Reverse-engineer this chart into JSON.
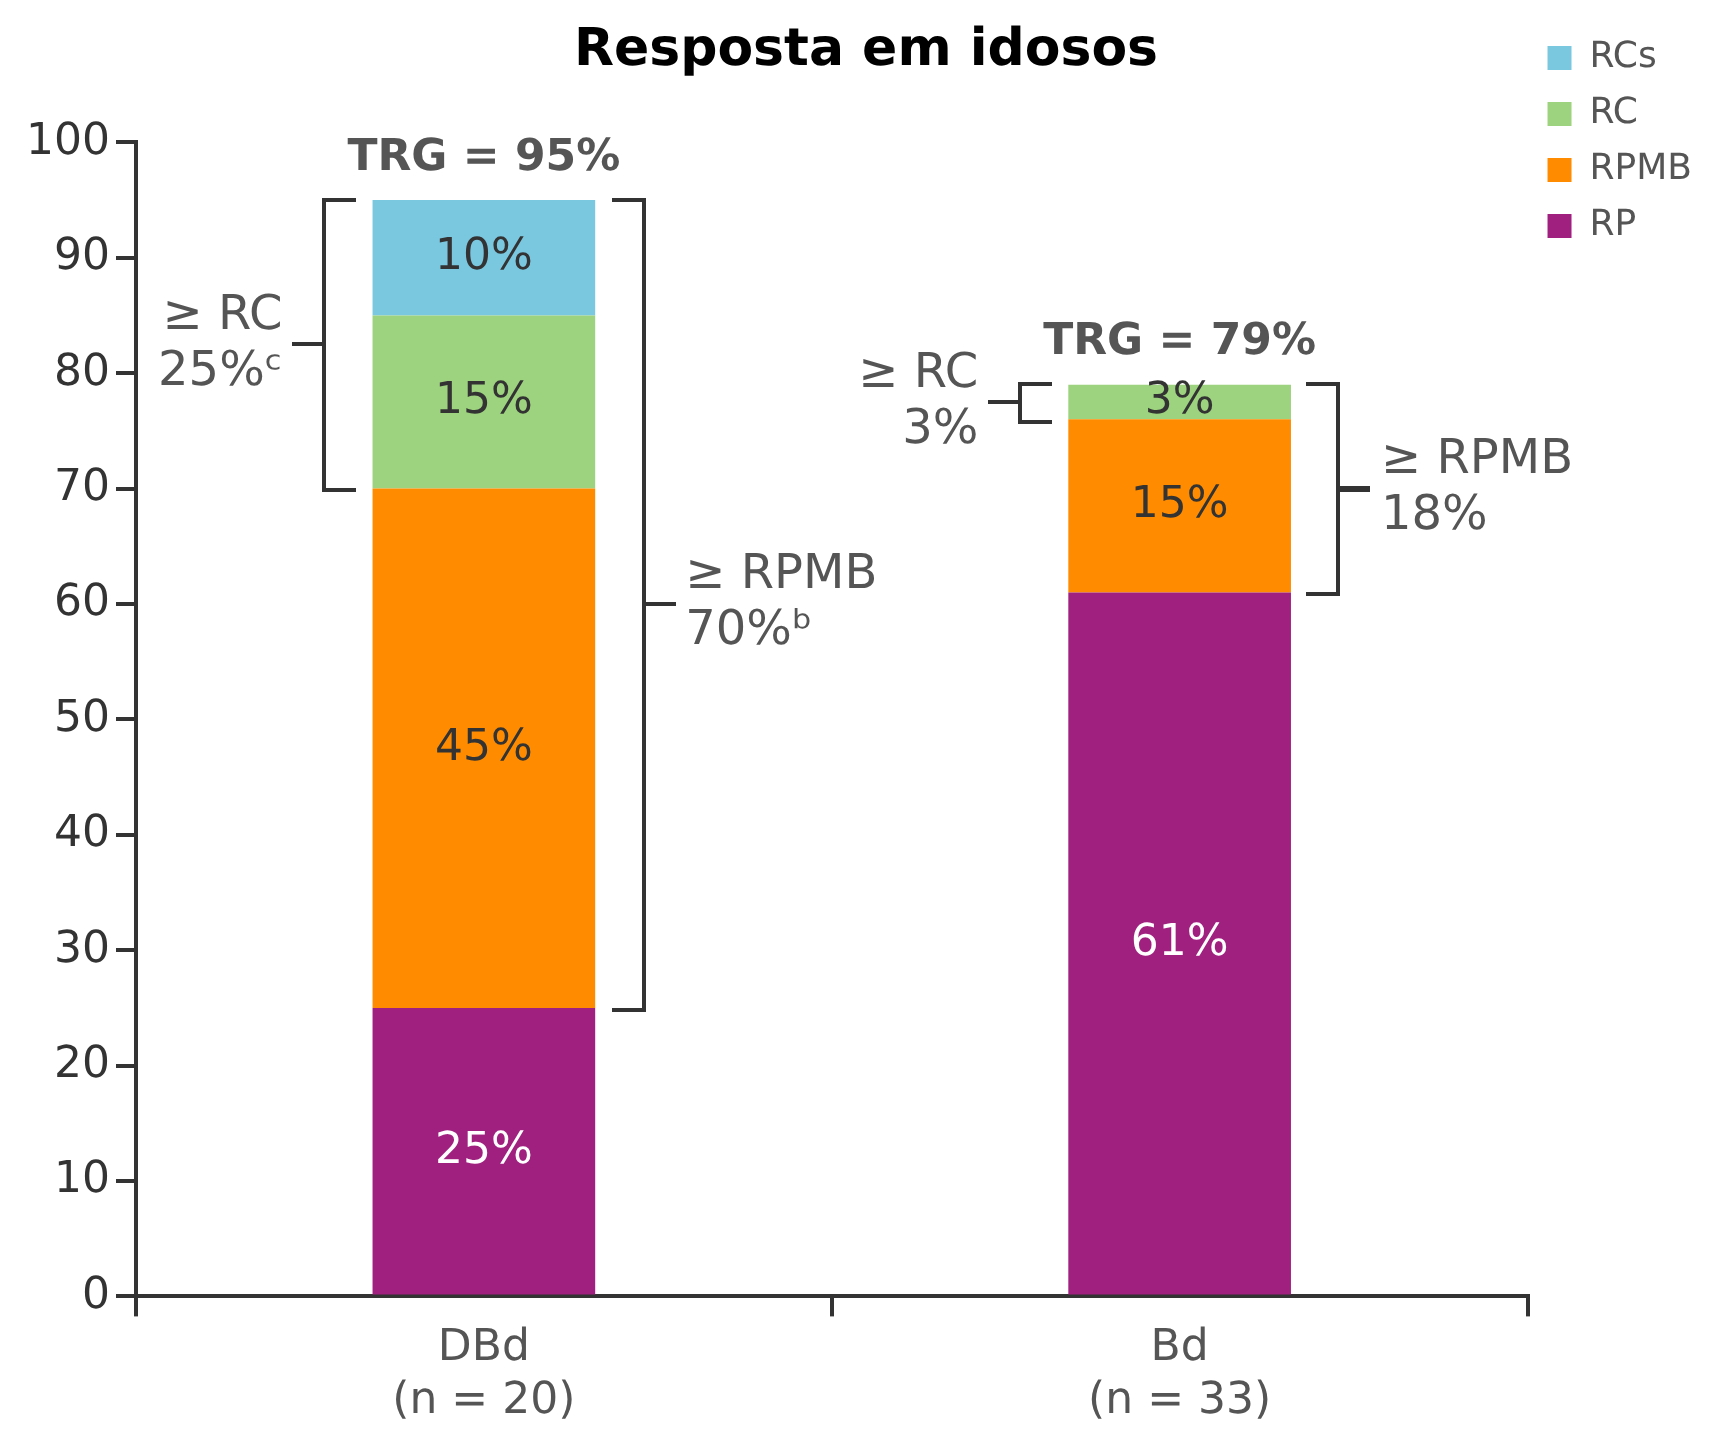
{
  "chart_data": {
    "type": "bar",
    "title": "Resposta em idosos",
    "categories": [
      "DBd\n(n = 20)",
      "Bd\n(n = 33)"
    ],
    "stacked": true,
    "series": [
      {
        "name": "RP",
        "color": "#a0207f",
        "values": [
          25,
          61
        ],
        "value_labels": [
          "25%",
          "61%"
        ]
      },
      {
        "name": "RPMB",
        "color": "#ff8c00",
        "values": [
          45,
          15
        ],
        "value_labels": [
          "45%",
          "15%"
        ]
      },
      {
        "name": "RC",
        "color": "#9dd27e",
        "values": [
          15,
          3
        ],
        "value_labels": [
          "15%",
          "3%"
        ]
      },
      {
        "name": "RCs",
        "color": "#7ac8e0",
        "values": [
          10,
          null
        ],
        "value_labels": [
          "10%",
          null
        ]
      }
    ],
    "totals": [
      "TRG = 95%",
      "TRG = 79%"
    ],
    "ylim": [
      0,
      100
    ],
    "yticks": [
      0,
      10,
      20,
      30,
      40,
      50,
      60,
      70,
      80,
      90,
      100
    ],
    "grid": false,
    "legend": "top right",
    "annotations": [
      "≥ RC\n25%ᶜ",
      "≥ RPMB\n70%ᵇ",
      "≥ RC\n3%",
      "≥ RPMB\n18%"
    ]
  }
}
